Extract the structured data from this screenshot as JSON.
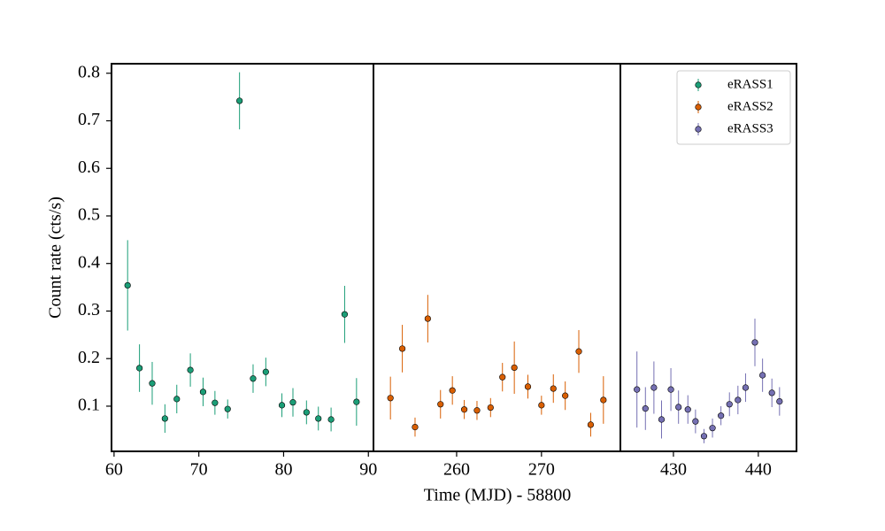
{
  "chart_data": {
    "type": "scatter",
    "ylabel": "Count rate (cts/s)",
    "xlabel": "Time (MJD) - 58800",
    "ylim": [
      0.005,
      0.82
    ],
    "yticks": [
      0.1,
      0.2,
      0.3,
      0.4,
      0.5,
      0.6,
      0.7,
      0.8
    ],
    "legend": "upper right",
    "panels": [
      {
        "xlim": [
          59.7,
          90.6
        ],
        "xticks": [
          60,
          70,
          80,
          90
        ],
        "series": [
          {
            "name": "eRASS1",
            "color": "#1b9e77",
            "x": [
              61.6,
              63.0,
              64.5,
              66.0,
              67.4,
              69.0,
              70.5,
              71.9,
              73.4,
              74.8,
              76.4,
              77.9,
              79.8,
              81.1,
              82.7,
              84.1,
              85.6,
              87.2,
              88.6
            ],
            "values": [
              0.354,
              0.18,
              0.148,
              0.074,
              0.115,
              0.176,
              0.13,
              0.107,
              0.094,
              0.742,
              0.158,
              0.172,
              0.102,
              0.108,
              0.087,
              0.074,
              0.072,
              0.293,
              0.109
            ],
            "errors": [
              0.095,
              0.05,
              0.045,
              0.03,
              0.03,
              0.035,
              0.03,
              0.025,
              0.02,
              0.06,
              0.03,
              0.03,
              0.025,
              0.03,
              0.025,
              0.025,
              0.025,
              0.06,
              0.05
            ]
          }
        ]
      },
      {
        "xlim": [
          250.2,
          279.3
        ],
        "xticks": [
          260,
          270
        ],
        "series": [
          {
            "name": "eRASS2",
            "color": "#d95f02",
            "x": [
              252.2,
              253.6,
              255.1,
              256.6,
              258.1,
              259.5,
              260.9,
              262.4,
              264.0,
              265.4,
              266.8,
              268.4,
              270.0,
              271.4,
              272.8,
              274.4,
              275.8,
              277.3
            ],
            "values": [
              0.117,
              0.221,
              0.056,
              0.284,
              0.104,
              0.133,
              0.093,
              0.091,
              0.097,
              0.161,
              0.181,
              0.141,
              0.102,
              0.137,
              0.122,
              0.215,
              0.061,
              0.113
            ],
            "errors": [
              0.045,
              0.05,
              0.02,
              0.05,
              0.03,
              0.03,
              0.02,
              0.02,
              0.02,
              0.03,
              0.055,
              0.025,
              0.02,
              0.03,
              0.03,
              0.045,
              0.025,
              0.05
            ]
          }
        ]
      },
      {
        "xlim": [
          423.75,
          444.5
        ],
        "xticks": [
          430,
          440
        ],
        "series": [
          {
            "name": "eRASS3",
            "color": "#7570b3",
            "x": [
              425.7,
              426.7,
              427.7,
              428.6,
              429.7,
              430.6,
              431.7,
              432.6,
              433.6,
              434.6,
              435.6,
              436.6,
              437.6,
              438.5,
              439.6,
              440.5,
              441.6,
              442.5
            ],
            "values": [
              0.135,
              0.095,
              0.139,
              0.072,
              0.135,
              0.098,
              0.093,
              0.068,
              0.037,
              0.054,
              0.08,
              0.104,
              0.113,
              0.139,
              0.234,
              0.165,
              0.128,
              0.11
            ],
            "errors": [
              0.08,
              0.045,
              0.055,
              0.04,
              0.045,
              0.035,
              0.03,
              0.025,
              0.015,
              0.02,
              0.02,
              0.025,
              0.03,
              0.03,
              0.05,
              0.035,
              0.03,
              0.03
            ]
          }
        ]
      }
    ]
  }
}
